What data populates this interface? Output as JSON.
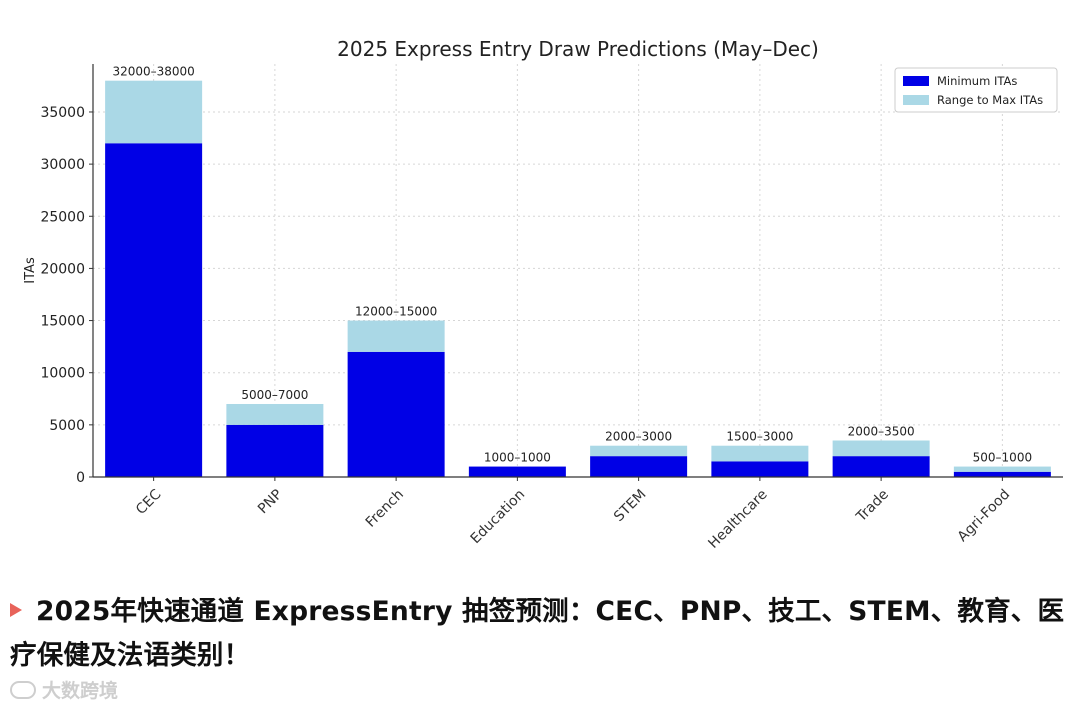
{
  "chart_data": {
    "type": "bar",
    "stacked": true,
    "title": "2025 Express Entry Draw Predictions (May–Dec)",
    "xlabel": "",
    "ylabel": "ITAs",
    "ylim": [
      0,
      39600
    ],
    "yticks": [
      0,
      5000,
      10000,
      15000,
      20000,
      25000,
      30000,
      35000
    ],
    "grid": true,
    "legend_position": "top-right",
    "categories": [
      "CEC",
      "PNP",
      "French",
      "Education",
      "STEM",
      "Healthcare",
      "Trade",
      "Agri-Food"
    ],
    "series": [
      {
        "name": "Minimum ITAs",
        "color": "#0000e6",
        "values": [
          32000,
          5000,
          12000,
          1000,
          2000,
          1500,
          2000,
          500
        ]
      },
      {
        "name": "Range to Max ITAs",
        "color": "#aad8e6",
        "values": [
          6000,
          2000,
          3000,
          0,
          1000,
          1500,
          1500,
          500
        ]
      }
    ],
    "range_labels": [
      "32000–38000",
      "5000–7000",
      "12000–15000",
      "1000–1000",
      "2000–3000",
      "1500–3000",
      "2000–3500",
      "500–1000"
    ]
  },
  "caption": {
    "text": "2025年快速通道 ExpressEntry 抽签预测：CEC、PNP、技工、STEM、教育、医疗保健及法语类别！",
    "marker_color": "#e8635a"
  },
  "watermark": {
    "text": "大数跨境"
  }
}
